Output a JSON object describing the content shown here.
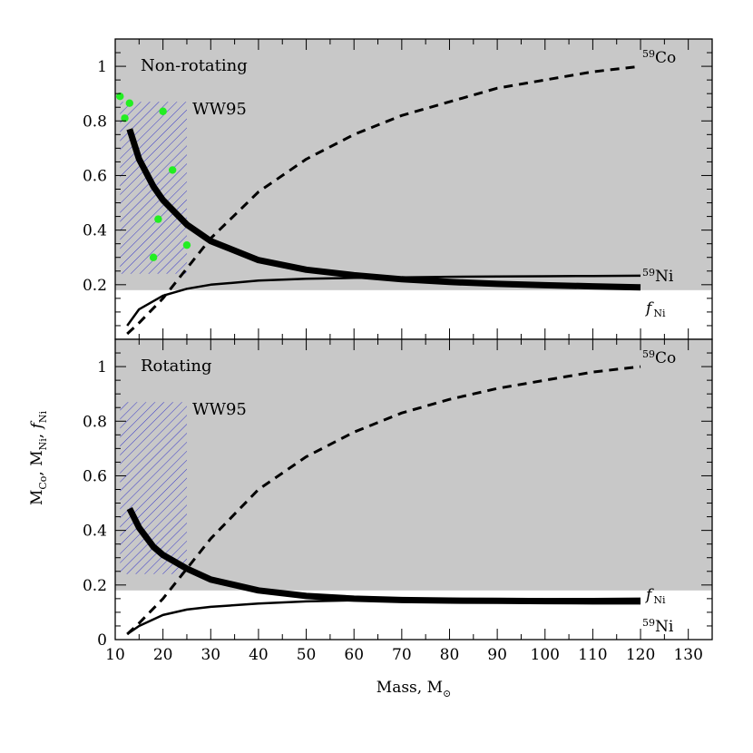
{
  "chart_data": [
    {
      "type": "line",
      "panel": "top",
      "title": "Non-rotating",
      "xlim": [
        10,
        135
      ],
      "ylim": [
        0,
        1.1
      ],
      "shaded_region": {
        "y_from": 0.18,
        "y_to": 1.1,
        "color": "#c8c8c8"
      },
      "hatched_box": {
        "label": "WW95",
        "x_from": 11,
        "x_to": 25,
        "y_from": 0.24,
        "y_to": 0.87,
        "color": "#3a3ac8"
      },
      "yticks": [
        "0.2",
        "0.4",
        "0.6",
        "0.8",
        "1"
      ],
      "series": [
        {
          "name": "59Co",
          "style": "dashed",
          "x": [
            12.5,
            15,
            20,
            25,
            30,
            40,
            50,
            60,
            70,
            80,
            90,
            100,
            110,
            120
          ],
          "y": [
            0.02,
            0.06,
            0.15,
            0.26,
            0.37,
            0.54,
            0.66,
            0.75,
            0.82,
            0.87,
            0.92,
            0.95,
            0.98,
            1.0
          ]
        },
        {
          "name": "59Ni",
          "style": "thin",
          "x": [
            12.5,
            15,
            20,
            25,
            30,
            40,
            50,
            60,
            70,
            80,
            90,
            100,
            110,
            120
          ],
          "y": [
            0.05,
            0.11,
            0.16,
            0.185,
            0.2,
            0.215,
            0.222,
            0.225,
            0.227,
            0.229,
            0.23,
            0.231,
            0.232,
            0.233
          ]
        },
        {
          "name": "fNi",
          "style": "thick",
          "x": [
            13,
            15,
            18,
            20,
            25,
            30,
            40,
            50,
            60,
            70,
            80,
            90,
            100,
            110,
            120
          ],
          "y": [
            0.77,
            0.66,
            0.56,
            0.51,
            0.42,
            0.36,
            0.29,
            0.255,
            0.235,
            0.22,
            0.21,
            0.203,
            0.198,
            0.194,
            0.19
          ]
        }
      ],
      "points": {
        "color": "#22ee22",
        "x": [
          11,
          12,
          13,
          20,
          22,
          19,
          18,
          25
        ],
        "y": [
          0.89,
          0.81,
          0.865,
          0.835,
          0.62,
          0.44,
          0.3,
          0.345
        ]
      },
      "labels": {
        "co": "59Co",
        "ni": "59Ni",
        "fni": "fNi",
        "box": "WW95"
      }
    },
    {
      "type": "line",
      "panel": "bottom",
      "title": "Rotating",
      "xlim": [
        10,
        135
      ],
      "ylim": [
        0,
        1.1
      ],
      "shaded_region": {
        "y_from": 0.18,
        "y_to": 1.1,
        "color": "#c8c8c8"
      },
      "hatched_box": {
        "label": "WW95",
        "x_from": 11,
        "x_to": 25,
        "y_from": 0.24,
        "y_to": 0.87,
        "color": "#3a3ac8"
      },
      "xticks": [
        "10",
        "20",
        "30",
        "40",
        "50",
        "60",
        "70",
        "80",
        "90",
        "100",
        "110",
        "120",
        "130"
      ],
      "yticks": [
        "0",
        "0.2",
        "0.4",
        "0.6",
        "0.8",
        "1"
      ],
      "series": [
        {
          "name": "59Co",
          "style": "dashed",
          "x": [
            12.5,
            15,
            20,
            25,
            30,
            40,
            50,
            60,
            70,
            80,
            90,
            100,
            110,
            120
          ],
          "y": [
            0.02,
            0.06,
            0.15,
            0.26,
            0.37,
            0.55,
            0.67,
            0.76,
            0.83,
            0.88,
            0.92,
            0.95,
            0.98,
            1.0
          ]
        },
        {
          "name": "fNi",
          "style": "thick",
          "x": [
            13,
            15,
            18,
            20,
            25,
            30,
            40,
            50,
            60,
            70,
            80,
            90,
            100,
            110,
            120
          ],
          "y": [
            0.48,
            0.41,
            0.34,
            0.31,
            0.26,
            0.22,
            0.18,
            0.16,
            0.15,
            0.145,
            0.143,
            0.142,
            0.141,
            0.14,
            0.14
          ]
        },
        {
          "name": "59Ni",
          "style": "thin",
          "x": [
            12.5,
            15,
            20,
            25,
            30,
            40,
            50,
            60,
            70,
            80,
            90,
            100,
            110,
            120
          ],
          "y": [
            0.02,
            0.05,
            0.09,
            0.11,
            0.12,
            0.132,
            0.14,
            0.144,
            0.146,
            0.147,
            0.148,
            0.148,
            0.149,
            0.15
          ]
        }
      ],
      "labels": {
        "co": "59Co",
        "ni": "59Ni",
        "fni": "fNi",
        "box": "WW95"
      }
    }
  ],
  "axes": {
    "xlabel": "Mass, M",
    "xlabel_sub": "⊙",
    "ylabel_parts": [
      "M",
      "Co",
      ", M",
      "Ni",
      ", ",
      "f",
      "Ni"
    ]
  }
}
